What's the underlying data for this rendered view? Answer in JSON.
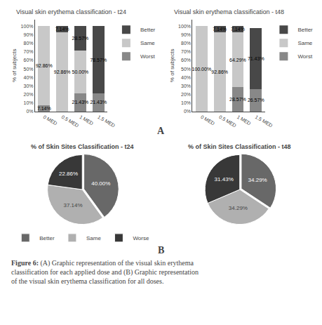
{
  "chart_data": [
    {
      "type": "bar",
      "title": "Visual skin erythema classification - t24",
      "categories": [
        "0 MED",
        "0.5 MED",
        "1 MED",
        "1.5 MED"
      ],
      "series": [
        {
          "name": "Worst",
          "color": "#888888",
          "values": [
            7.14,
            0.0,
            21.43,
            21.43
          ],
          "value_labels": [
            "7.14%",
            null,
            "21.43%",
            "21.43%"
          ]
        },
        {
          "name": "Same",
          "color": "#c8c8c8",
          "values": [
            92.86,
            92.86,
            50.0,
            0.0
          ],
          "value_labels": [
            "92.86%",
            "92.86%",
            "50.00%",
            null
          ]
        },
        {
          "name": "Better",
          "color": "#484848",
          "values": [
            0.0,
            7.14,
            28.57,
            78.57
          ],
          "value_labels": [
            null,
            "7.14%",
            "28.57%",
            "78.57%"
          ]
        }
      ],
      "ylabel": "% of subjects",
      "ylim": [
        0,
        108
      ],
      "yticks": [
        {
          "value": 0,
          "label": "0%"
        },
        {
          "value": 10,
          "label": "10%"
        },
        {
          "value": 20,
          "label": "20%"
        },
        {
          "value": 30,
          "label": "30%"
        },
        {
          "value": 40,
          "label": "40%"
        },
        {
          "value": 50,
          "label": "50%"
        },
        {
          "value": 60,
          "label": "60%"
        },
        {
          "value": 70,
          "label": "70%"
        },
        {
          "value": 80,
          "label": "80%"
        },
        {
          "value": 90,
          "label": "90%"
        },
        {
          "value": 100,
          "label": "100%"
        }
      ],
      "stacked": true,
      "data_labels": true,
      "grid": false,
      "legend": "right"
    },
    {
      "type": "bar",
      "title": "Visual skin erythema classification - t48",
      "categories": [
        "0 MED",
        "0.5 MED",
        "1 MED",
        "1.5 MED"
      ],
      "series": [
        {
          "name": "Worst",
          "color": "#888888",
          "values": [
            0.0,
            0.0,
            28.57,
            26.57
          ],
          "value_labels": [
            null,
            null,
            "28.57%",
            "26.57%"
          ]
        },
        {
          "name": "Same",
          "color": "#c8c8c8",
          "values": [
            100.0,
            92.86,
            64.29,
            0.0
          ],
          "value_labels": [
            "100.00%",
            "92.86%",
            "64.29%",
            null
          ]
        },
        {
          "name": "Better",
          "color": "#484848",
          "values": [
            0.0,
            7.14,
            7.14,
            71.43
          ],
          "value_labels": [
            null,
            "7.14%",
            "7.14%",
            "71.43%"
          ]
        }
      ],
      "ylabel": "% of subjects",
      "ylim": [
        0,
        108
      ],
      "yticks": [
        {
          "value": 0,
          "label": "0%"
        },
        {
          "value": 10,
          "label": "10%"
        },
        {
          "value": 20,
          "label": "20%"
        },
        {
          "value": 30,
          "label": "30%"
        },
        {
          "value": 40,
          "label": "40%"
        },
        {
          "value": 50,
          "label": "50%"
        },
        {
          "value": 60,
          "label": "60%"
        },
        {
          "value": 70,
          "label": "70%"
        },
        {
          "value": 80,
          "label": "80%"
        },
        {
          "value": 90,
          "label": "90%"
        },
        {
          "value": 100,
          "label": "100%"
        }
      ],
      "stacked": true,
      "data_labels": true,
      "grid": false,
      "legend": "right"
    },
    {
      "type": "pie",
      "title": "% of Skin Sites Classification - t24",
      "categories": [
        "Better",
        "Same",
        "Worse"
      ],
      "values": [
        40.0,
        37.14,
        22.86
      ],
      "value_labels": [
        "40.00%",
        "37.14%",
        "22.86%"
      ],
      "colors": [
        "#686868",
        "#b0b0b0",
        "#383838"
      ],
      "data_labels": true,
      "legend": "bottom"
    },
    {
      "type": "pie",
      "title": "% of Skin Sites Classification - t48",
      "categories": [
        "Better",
        "Same",
        "Worse"
      ],
      "values": [
        34.29,
        34.29,
        31.43
      ],
      "value_labels": [
        "34.29%",
        "34.29%",
        "31.43%"
      ],
      "colors": [
        "#686868",
        "#b0b0b0",
        "#383838"
      ],
      "data_labels": true,
      "legend": "bottom"
    }
  ],
  "annotations": [
    "A",
    "B",
    "Figure 6:",
    " (A) Graphic representation of the visual skin erythema\nclassification for each applied dose and (B) Graphic representation\nof the visual skin erythema classification for all doses."
  ]
}
